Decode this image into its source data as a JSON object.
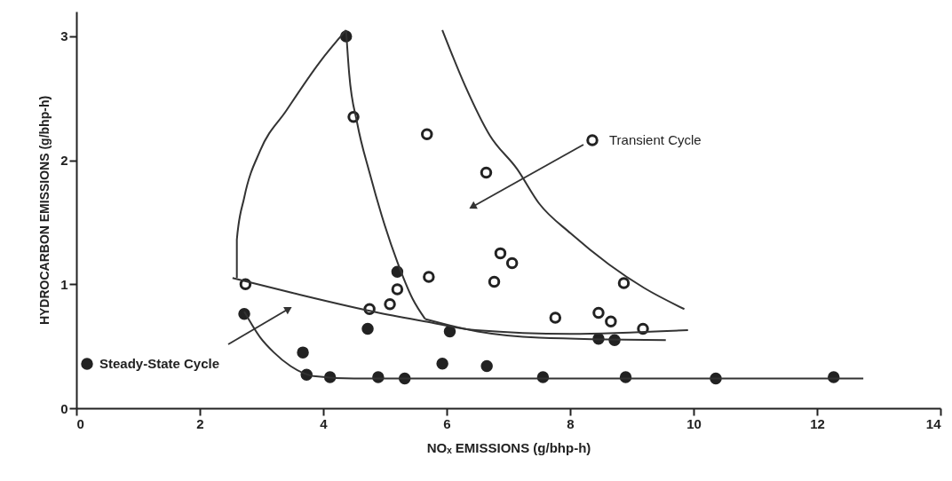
{
  "chart_data": {
    "type": "scatter",
    "xlabel": "NOₓ EMISSIONS (g/bhp-h)",
    "ylabel": "HYDROCARBON EMISSIONS (g/bhp-h)",
    "xlim": [
      0,
      14
    ],
    "ylim": [
      0,
      3.2
    ],
    "xticks": [
      0,
      2,
      4,
      6,
      8,
      10,
      12,
      14
    ],
    "yticks": [
      0,
      1,
      2,
      3
    ],
    "grid": false,
    "legend": "bottom left",
    "series": [
      {
        "name": "Transient Cycle",
        "color": "#222222",
        "marker": "circle",
        "x": [
          2.74,
          4.49,
          5.68,
          6.64,
          5.71,
          6.77,
          5.2,
          5.08,
          4.75,
          6.87,
          7.06,
          8.87,
          7.76,
          8.46,
          8.66,
          9.18
        ],
        "values": [
          1.0,
          2.35,
          2.21,
          1.9,
          1.06,
          1.02,
          0.96,
          0.84,
          0.8,
          1.25,
          1.17,
          1.01,
          0.73,
          0.77,
          0.7,
          0.64
        ]
      },
      {
        "name": "Steady-State Cycle",
        "color": "#222222",
        "marker": "circle",
        "x": [
          4.37,
          5.2,
          2.72,
          4.72,
          6.05,
          3.67,
          5.93,
          6.65,
          3.73,
          4.11,
          4.89,
          5.32,
          8.46,
          8.72,
          7.56,
          8.9,
          10.36,
          12.27
        ],
        "values": [
          3.0,
          1.1,
          0.76,
          0.64,
          0.62,
          0.45,
          0.36,
          0.34,
          0.27,
          0.25,
          0.25,
          0.24,
          0.56,
          0.55,
          0.25,
          0.25,
          0.24,
          0.25
        ]
      },
      {
        "type": "line",
        "color": "#333333",
        "x": [
          4.37,
          4.42,
          4.55,
          4.75,
          4.95,
          5.2,
          5.45,
          5.65
        ],
        "values": [
          3.05,
          2.7,
          2.3,
          1.9,
          1.55,
          1.18,
          0.88,
          0.72
        ]
      },
      {
        "type": "line",
        "color": "#333333",
        "x": [
          5.93,
          6.3,
          6.7,
          7.14,
          7.5,
          8.01,
          8.63,
          9.2,
          9.85
        ],
        "values": [
          3.05,
          2.6,
          2.2,
          1.93,
          1.65,
          1.41,
          1.16,
          0.97,
          0.8
        ]
      },
      {
        "type": "line",
        "color": "#333333",
        "x": [
          4.37,
          3.94,
          3.4,
          2.98,
          2.72,
          2.6,
          2.6
        ],
        "values": [
          3.05,
          2.79,
          2.4,
          2.08,
          1.7,
          1.36,
          1.05
        ]
      },
      {
        "type": "line",
        "color": "#333333",
        "x": [
          2.53,
          3.5,
          4.9,
          5.65,
          6.47,
          8.0,
          9.91
        ],
        "values": [
          1.05,
          0.93,
          0.77,
          0.7,
          0.63,
          0.6,
          0.63
        ]
      },
      {
        "type": "line",
        "color": "#333333",
        "x": [
          5.65,
          6.5,
          7.5,
          9.55
        ],
        "values": [
          0.72,
          0.62,
          0.57,
          0.55
        ]
      },
      {
        "type": "line",
        "color": "#333333",
        "x": [
          2.72,
          2.98,
          3.2,
          3.47,
          3.84,
          4.5,
          12.75
        ],
        "values": [
          0.78,
          0.57,
          0.45,
          0.34,
          0.26,
          0.24,
          0.24
        ]
      }
    ]
  }
}
